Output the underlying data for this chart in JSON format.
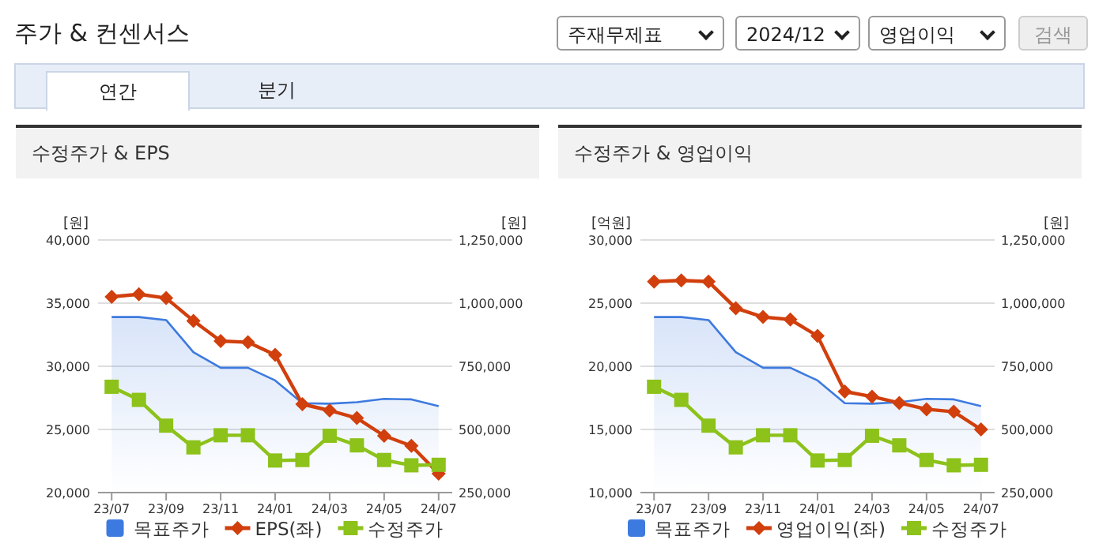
{
  "chart_data": [
    {
      "type": "line",
      "title": "수정주가 & EPS",
      "ylabel": "[원]",
      "y2label": "[원]",
      "annotations": [
        "주가 & 컨센서스",
        "주재무제표",
        "2024/12",
        "영업이익",
        "검색",
        "연간",
        "분기"
      ],
      "categories": [
        "23/07",
        null,
        "23/09",
        null,
        "23/11",
        null,
        "24/01",
        null,
        "24/03",
        null,
        "24/05",
        null,
        "24/07"
      ],
      "ylim": [
        20000,
        40000
      ],
      "yticks": [
        {
          "value": 20000,
          "label": "20,000"
        },
        {
          "value": 25000,
          "label": "25,000"
        },
        {
          "value": 30000,
          "label": "30,000"
        },
        {
          "value": 35000,
          "label": "35,000"
        },
        {
          "value": 40000,
          "label": "40,000"
        }
      ],
      "y2lim": [
        250000,
        1250000
      ],
      "y2ticks": [
        {
          "value": 250000,
          "label": "250,000"
        },
        {
          "value": 500000,
          "label": "500,000"
        },
        {
          "value": 750000,
          "label": "750,000"
        },
        {
          "value": 1000000,
          "label": "1,000,000"
        },
        {
          "value": 1250000,
          "label": "1,250,000"
        }
      ],
      "grid": "y",
      "legend": "bottom",
      "series": [
        {
          "name": "목표주가",
          "type": "area",
          "axis": "y2",
          "color": "#3d7ae0",
          "marker": "none",
          "values": [
            945000,
            945000,
            933000,
            806000,
            744000,
            744000,
            694000,
            604000,
            602000,
            608000,
            621000,
            619000,
            592000
          ]
        },
        {
          "name": "EPS(좌)",
          "type": "line",
          "color": "#d13f0d",
          "marker": "diamond",
          "values": [
            35500,
            35700,
            35400,
            33600,
            32000,
            31900,
            30900,
            27000,
            26500,
            25900,
            24500,
            23700,
            21500
          ]
        },
        {
          "name": "수정주가",
          "type": "line",
          "axis": "y2",
          "color": "#8cc21a",
          "marker": "square",
          "values": [
            669000,
            617000,
            515000,
            429000,
            477000,
            477000,
            377000,
            379000,
            475000,
            437000,
            379000,
            358000,
            360000
          ]
        }
      ]
    },
    {
      "type": "line",
      "title": "수정주가 & 영업이익",
      "ylabel": "[억원]",
      "y2label": "[원]",
      "categories": [
        "23/07",
        null,
        "23/09",
        null,
        "23/11",
        null,
        "24/01",
        null,
        "24/03",
        null,
        "24/05",
        null,
        "24/07"
      ],
      "ylim": [
        10000,
        30000
      ],
      "yticks": [
        {
          "value": 10000,
          "label": "10,000"
        },
        {
          "value": 15000,
          "label": "15,000"
        },
        {
          "value": 20000,
          "label": "20,000"
        },
        {
          "value": 25000,
          "label": "25,000"
        },
        {
          "value": 30000,
          "label": "30,000"
        }
      ],
      "y2lim": [
        250000,
        1250000
      ],
      "y2ticks": [
        {
          "value": 250000,
          "label": "250,000"
        },
        {
          "value": 500000,
          "label": "500,000"
        },
        {
          "value": 750000,
          "label": "750,000"
        },
        {
          "value": 1000000,
          "label": "1,000,000"
        },
        {
          "value": 1250000,
          "label": "1,250,000"
        }
      ],
      "grid": "y",
      "legend": "bottom",
      "series": [
        {
          "name": "목표주가",
          "type": "area",
          "axis": "y2",
          "color": "#3d7ae0",
          "marker": "none",
          "values": [
            945000,
            945000,
            933000,
            806000,
            744000,
            744000,
            694000,
            604000,
            602000,
            608000,
            621000,
            619000,
            592000
          ]
        },
        {
          "name": "영업이익(좌)",
          "type": "line",
          "color": "#d13f0d",
          "marker": "diamond",
          "values": [
            26700,
            26800,
            26700,
            24600,
            23900,
            23700,
            22400,
            18000,
            17600,
            17100,
            16600,
            16400,
            15000
          ]
        },
        {
          "name": "수정주가",
          "type": "line",
          "axis": "y2",
          "color": "#8cc21a",
          "marker": "square",
          "values": [
            669000,
            617000,
            515000,
            429000,
            477000,
            477000,
            377000,
            379000,
            475000,
            437000,
            379000,
            358000,
            360000
          ]
        }
      ]
    }
  ]
}
